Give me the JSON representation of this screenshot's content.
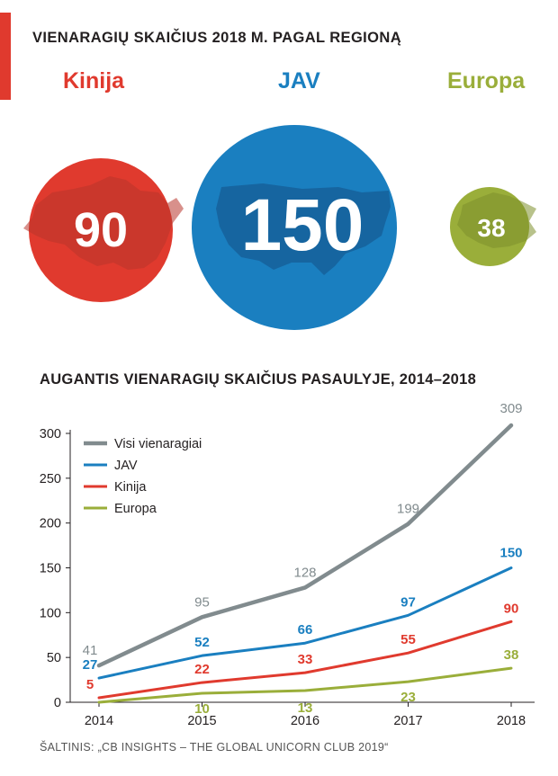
{
  "bubble_title": "VIENARAGIŲ SKAIČIUS 2018 M. PAGAL REGIONĄ",
  "bubbles": [
    {
      "key": "china",
      "label": "Kinija",
      "value": "90",
      "color": "#e03a2e"
    },
    {
      "key": "usa",
      "label": "JAV",
      "value": "150",
      "color": "#1a7fc0"
    },
    {
      "key": "europe",
      "label": "Europa",
      "value": "38",
      "color": "#9aae3a"
    }
  ],
  "chart_title": "AUGANTIS VIENARAGIŲ SKAIČIUS PASAULYJE, 2014–2018",
  "source": "ŠALTINIS: „CB INSIGHTS – THE GLOBAL UNICORN CLUB 2019“",
  "chart_data": {
    "type": "line",
    "title": "AUGANTIS VIENARAGIŲ SKAIČIUS PASAULYJE, 2014–2018",
    "x": [
      "2014",
      "2015",
      "2016",
      "2017",
      "2018"
    ],
    "ylim": [
      0,
      300
    ],
    "yticks": [
      0,
      50,
      100,
      150,
      200,
      250,
      300
    ],
    "grid": false,
    "legend_position": "top-left",
    "series": [
      {
        "name": "Visi vienaragiai",
        "color": "#818b8e",
        "values": [
          41,
          95,
          128,
          199,
          309
        ]
      },
      {
        "name": "JAV",
        "color": "#1a7fc0",
        "values": [
          27,
          52,
          66,
          97,
          150
        ]
      },
      {
        "name": "Kinija",
        "color": "#e03a2e",
        "values": [
          5,
          22,
          33,
          55,
          90
        ]
      },
      {
        "name": "Europa",
        "color": "#9aae3a",
        "values": [
          0,
          10,
          13,
          23,
          38
        ]
      }
    ],
    "data_labels": [
      [
        "41",
        "95",
        "128",
        "199",
        "309"
      ],
      [
        "27",
        "52",
        "66",
        "97",
        "150"
      ],
      [
        "5",
        "22",
        "33",
        "55",
        "90"
      ],
      [
        "",
        "10",
        "13",
        "23",
        "38"
      ]
    ]
  }
}
